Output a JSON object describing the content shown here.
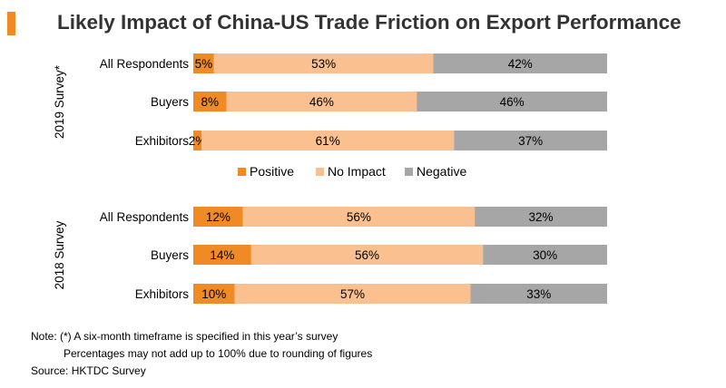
{
  "title": "Likely Impact of China-US Trade Friction on Export Performance",
  "accent_color": "#f08a24",
  "notes": {
    "note": "Note: (*) A six-month timeframe is specified in this year’s survey",
    "note2": "Percentages may not add up to 100% due to rounding of figures",
    "source": "Source: HKTDC Survey"
  },
  "chart_data": {
    "type": "bar",
    "orientation": "horizontal",
    "stacked": "100%",
    "categories": [
      "All Respondents",
      "Buyers",
      "Exhibitors"
    ],
    "legend": {
      "position": "between-panels",
      "entries": [
        "Positive",
        "No Impact",
        "Negative"
      ]
    },
    "colors": {
      "Positive": "#f08a24",
      "No Impact": "#fac090",
      "Negative": "#a6a6a6"
    },
    "panels": [
      {
        "label": "2019 Survey*",
        "series": [
          {
            "name": "Positive",
            "values": [
              5,
              8,
              2
            ]
          },
          {
            "name": "No Impact",
            "values": [
              53,
              46,
              61
            ]
          },
          {
            "name": "Negative",
            "values": [
              42,
              46,
              37
            ]
          }
        ],
        "labels": [
          [
            "5%",
            "53%",
            "42%"
          ],
          [
            "8%",
            "46%",
            "46%"
          ],
          [
            "2%",
            "61%",
            "37%"
          ]
        ]
      },
      {
        "label": "2018 Survey",
        "series": [
          {
            "name": "Positive",
            "values": [
              12,
              14,
              10
            ]
          },
          {
            "name": "No Impact",
            "values": [
              56,
              56,
              57
            ]
          },
          {
            "name": "Negative",
            "values": [
              32,
              30,
              33
            ]
          }
        ],
        "labels": [
          [
            "12%",
            "56%",
            "32%"
          ],
          [
            "14%",
            "56%",
            "30%"
          ],
          [
            "10%",
            "57%",
            "33%"
          ]
        ]
      }
    ]
  }
}
